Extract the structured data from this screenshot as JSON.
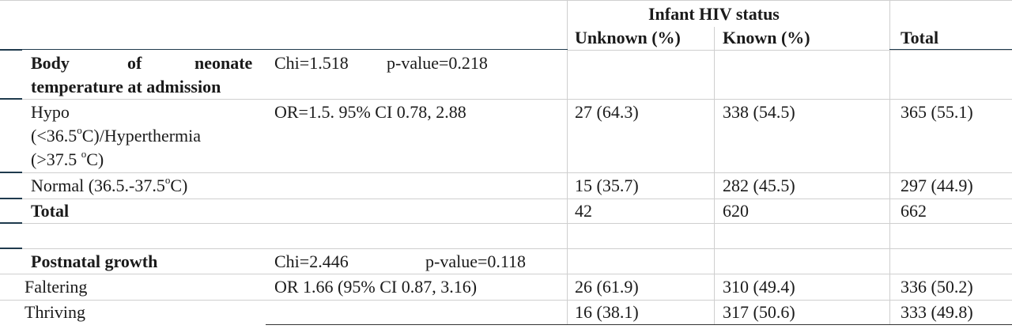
{
  "header": {
    "group_label": "Infant HIV status",
    "col_unknown": "Unknown (%)",
    "col_known": "Known (%)",
    "col_total": "Total"
  },
  "section1": {
    "title_word1": "Body",
    "title_word2": "of",
    "title_word3": "neonate",
    "title_line2": "temperature at admission",
    "chi": "Chi=1.518",
    "pvalue": "p-value=0.218",
    "row_hypo": {
      "line1": "Hypo",
      "line2_a": "(<36.5",
      "line2_sup": "o",
      "line2_b": "C)/Hyperthermia",
      "line3_a": "(>37.5 ",
      "line3_sup": "o",
      "line3_b": "C)",
      "stat": "OR=1.5.  95% CI 0.78, 2.88",
      "unknown": "27 (64.3)",
      "known": "338 (54.5)",
      "total": "365 (55.1)"
    },
    "row_normal": {
      "label_a": "Normal (36.5.-37.5",
      "label_sup": "o",
      "label_b": "C)",
      "unknown": "15 (35.7)",
      "known": "282 (45.5)",
      "total": "297 (44.9)"
    },
    "row_total": {
      "label": "Total",
      "unknown": "42",
      "known": "620",
      "total": "662"
    }
  },
  "section2": {
    "title": "Postnatal growth",
    "chi": "Chi=2.446",
    "pvalue": "p-value=0.118",
    "row_faltering": {
      "label": "Faltering",
      "stat": "OR 1.66 (95% CI 0.87, 3.16)",
      "unknown": "26 (61.9)",
      "known": "310 (49.4)",
      "total": "336 (50.2)"
    },
    "row_thriving": {
      "label": "Thriving",
      "unknown": "16 (38.1)",
      "known": "317 (50.6)",
      "total": "333 (49.8)"
    }
  }
}
